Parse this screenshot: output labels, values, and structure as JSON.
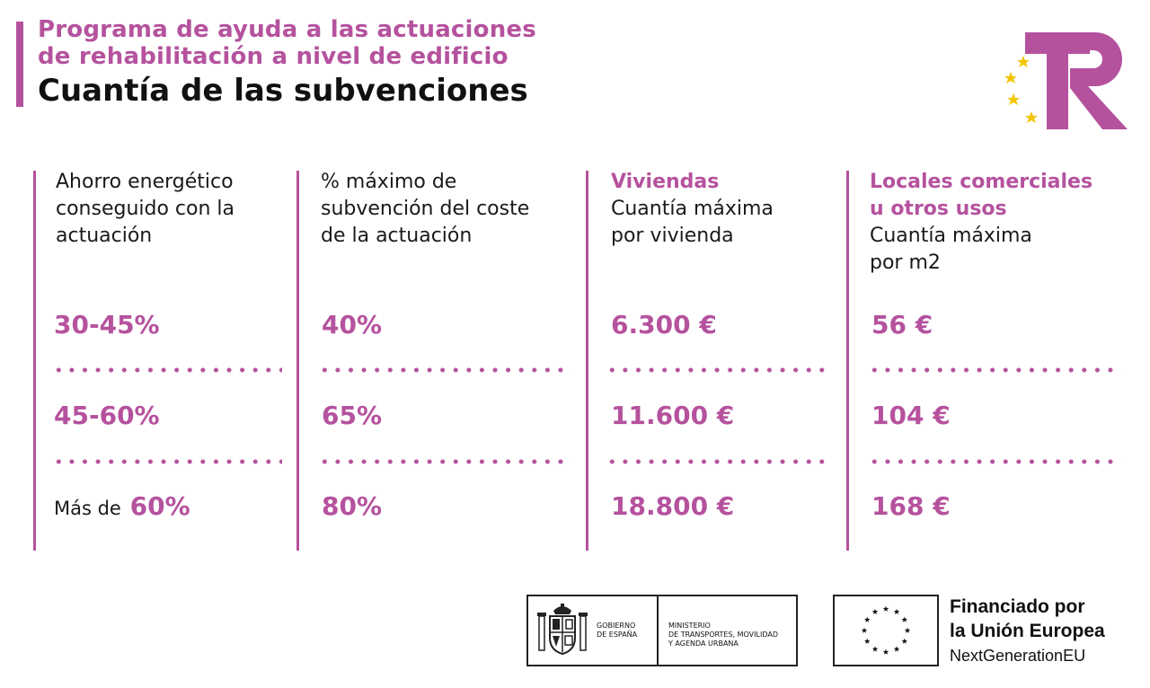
{
  "header": {
    "subtitle_line1": "Programa de ayuda a las actuaciones",
    "subtitle_line2": "de rehabilitación a nivel de edificio",
    "title": "Cuantía de las subvenciones"
  },
  "logo": {
    "icon": "tr-logo-icon",
    "color": "#b5529e",
    "star_color": "#f2c500"
  },
  "columns": [
    {
      "heading": [
        "Ahorro energético",
        "conseguido con la",
        "actuación"
      ]
    },
    {
      "heading": [
        "% máximo de",
        "subvención del coste",
        "de la actuación"
      ]
    },
    {
      "highlight": [
        "Viviendas"
      ],
      "heading": [
        "Cuantía máxima",
        "por vivienda"
      ]
    },
    {
      "highlight": [
        "Locales comerciales",
        "u otros usos"
      ],
      "heading": [
        "Cuantía máxima",
        "por m2"
      ]
    }
  ],
  "rows": [
    {
      "saving": "30-45%",
      "percent": "40%",
      "vivienda": "6.300 €",
      "locales": "56 €"
    },
    {
      "saving": "45-60%",
      "percent": "65%",
      "vivienda": "11.600 €",
      "locales": "104 €"
    },
    {
      "saving_prefix": "Más de",
      "saving": "60%",
      "percent": "80%",
      "vivienda": "18.800 €",
      "locales": "168 €"
    }
  ],
  "footer": {
    "gov_line1": "GOBIERNO",
    "gov_line2": "DE ESPAÑA",
    "ministry_line1": "MINISTERIO",
    "ministry_line2": "DE TRANSPORTES, MOVILIDAD",
    "ministry_line3": "Y AGENDA URBANA",
    "eu_line1": "Financiado por",
    "eu_line2": "la Unión Europea",
    "eu_line3": "NextGenerationEU"
  },
  "colors": {
    "accent": "#b5529e",
    "text": "#1a1a1a"
  }
}
